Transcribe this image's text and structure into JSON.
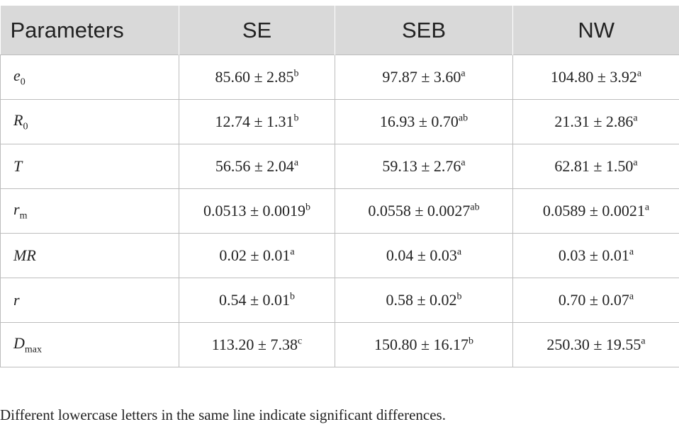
{
  "table": {
    "header": [
      "Parameters",
      "SE",
      "SEB",
      "NW"
    ],
    "rows": [
      {
        "param": {
          "base": "e",
          "sub": "0"
        },
        "cells": [
          {
            "value": "85.60 ± 2.85",
            "sup": "b"
          },
          {
            "value": "97.87 ± 3.60",
            "sup": "a"
          },
          {
            "value": "104.80 ± 3.92",
            "sup": "a"
          }
        ]
      },
      {
        "param": {
          "base": "R",
          "sub": "0"
        },
        "cells": [
          {
            "value": "12.74 ± 1.31",
            "sup": "b"
          },
          {
            "value": "16.93 ± 0.70",
            "sup": "ab"
          },
          {
            "value": "21.31 ± 2.86",
            "sup": "a"
          }
        ]
      },
      {
        "param": {
          "base": "T"
        },
        "cells": [
          {
            "value": "56.56 ± 2.04",
            "sup": "a"
          },
          {
            "value": "59.13 ± 2.76",
            "sup": "a"
          },
          {
            "value": "62.81 ± 1.50",
            "sup": "a"
          }
        ]
      },
      {
        "param": {
          "base": "r",
          "sub": "m"
        },
        "cells": [
          {
            "value": "0.0513 ± 0.0019",
            "sup": "b"
          },
          {
            "value": "0.0558 ± 0.0027",
            "sup": "ab"
          },
          {
            "value": "0.0589 ± 0.0021",
            "sup": "a"
          }
        ]
      },
      {
        "param": {
          "base": "MR"
        },
        "cells": [
          {
            "value": "0.02 ± 0.01",
            "sup": "a"
          },
          {
            "value": "0.04 ± 0.03",
            "sup": "a"
          },
          {
            "value": "0.03 ± 0.01",
            "sup": "a"
          }
        ]
      },
      {
        "param": {
          "base": "r"
        },
        "cells": [
          {
            "value": "0.54 ± 0.01",
            "sup": "b"
          },
          {
            "value": "0.58 ± 0.02",
            "sup": "b"
          },
          {
            "value": "0.70 ± 0.07",
            "sup": "a"
          }
        ]
      },
      {
        "param": {
          "base": "D",
          "sub": "max"
        },
        "cells": [
          {
            "value": "113.20 ± 7.38",
            "sup": "c"
          },
          {
            "value": "150.80 ± 16.17",
            "sup": "b"
          },
          {
            "value": "250.30 ± 19.55",
            "sup": "a"
          }
        ]
      }
    ]
  },
  "note": "Different lowercase letters in the same line indicate significant differences."
}
